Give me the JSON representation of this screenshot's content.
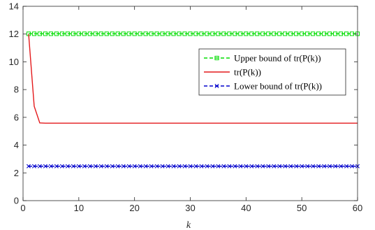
{
  "chart_data": {
    "type": "line",
    "xlabel": "k",
    "ylabel": "",
    "xlim": [
      0,
      60
    ],
    "ylim": [
      0,
      14
    ],
    "xticks": [
      0,
      10,
      20,
      30,
      40,
      50,
      60
    ],
    "yticks": [
      0,
      2,
      4,
      6,
      8,
      10,
      12,
      14
    ],
    "grid": false,
    "legend_position": "right",
    "x": [
      1,
      2,
      3,
      4,
      5,
      6,
      7,
      8,
      9,
      10,
      11,
      12,
      13,
      14,
      15,
      16,
      17,
      18,
      19,
      20,
      21,
      22,
      23,
      24,
      25,
      26,
      27,
      28,
      29,
      30,
      31,
      32,
      33,
      34,
      35,
      36,
      37,
      38,
      39,
      40,
      41,
      42,
      43,
      44,
      45,
      46,
      47,
      48,
      49,
      50,
      51,
      52,
      53,
      54,
      55,
      56,
      57,
      58,
      59,
      60
    ],
    "series": [
      {
        "name": "Upper bound of tr(P(k))",
        "color": "#00dd00",
        "line_style": "dashed",
        "marker": "square",
        "values": [
          12.02,
          12.02,
          12.02,
          12.02,
          12.02,
          12.02,
          12.02,
          12.02,
          12.02,
          12.02,
          12.02,
          12.02,
          12.02,
          12.02,
          12.02,
          12.02,
          12.02,
          12.02,
          12.02,
          12.02,
          12.02,
          12.02,
          12.02,
          12.02,
          12.02,
          12.02,
          12.02,
          12.02,
          12.02,
          12.02,
          12.02,
          12.02,
          12.02,
          12.02,
          12.02,
          12.02,
          12.02,
          12.02,
          12.02,
          12.02,
          12.02,
          12.02,
          12.02,
          12.02,
          12.02,
          12.02,
          12.02,
          12.02,
          12.02,
          12.02,
          12.02,
          12.02,
          12.02,
          12.02,
          12.02,
          12.02,
          12.02,
          12.02,
          12.02,
          12.02
        ]
      },
      {
        "name": "tr(P(k))",
        "color": "#e41a1c",
        "line_style": "solid",
        "marker": "none",
        "values": [
          12.0,
          6.8,
          5.6,
          5.58,
          5.58,
          5.58,
          5.58,
          5.58,
          5.58,
          5.58,
          5.58,
          5.58,
          5.58,
          5.58,
          5.58,
          5.58,
          5.58,
          5.58,
          5.58,
          5.58,
          5.58,
          5.58,
          5.58,
          5.58,
          5.58,
          5.58,
          5.58,
          5.58,
          5.58,
          5.58,
          5.58,
          5.58,
          5.58,
          5.58,
          5.58,
          5.58,
          5.58,
          5.58,
          5.58,
          5.58,
          5.58,
          5.58,
          5.58,
          5.58,
          5.58,
          5.58,
          5.58,
          5.58,
          5.58,
          5.58,
          5.58,
          5.58,
          5.58,
          5.58,
          5.58,
          5.58,
          5.58,
          5.58,
          5.58,
          5.58
        ]
      },
      {
        "name": "Lower bound of tr(P(k))",
        "color": "#0000cc",
        "line_style": "dashed",
        "marker": "x",
        "values": [
          2.48,
          2.48,
          2.48,
          2.48,
          2.48,
          2.48,
          2.48,
          2.48,
          2.48,
          2.48,
          2.48,
          2.48,
          2.48,
          2.48,
          2.48,
          2.48,
          2.48,
          2.48,
          2.48,
          2.48,
          2.48,
          2.48,
          2.48,
          2.48,
          2.48,
          2.48,
          2.48,
          2.48,
          2.48,
          2.48,
          2.48,
          2.48,
          2.48,
          2.48,
          2.48,
          2.48,
          2.48,
          2.48,
          2.48,
          2.48,
          2.48,
          2.48,
          2.48,
          2.48,
          2.48,
          2.48,
          2.48,
          2.48,
          2.48,
          2.48,
          2.48,
          2.48,
          2.48,
          2.48,
          2.48,
          2.48,
          2.48,
          2.48,
          2.48,
          2.48
        ]
      }
    ]
  }
}
